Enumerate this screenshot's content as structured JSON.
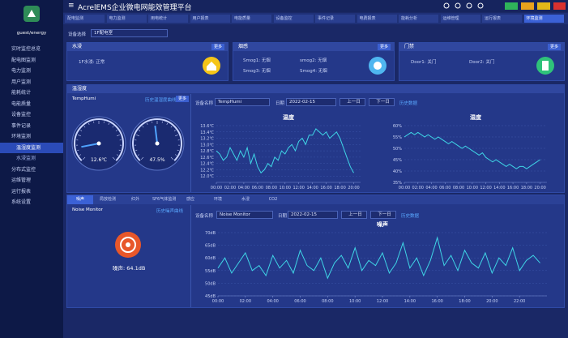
{
  "header": {
    "title": "AcrelEMS企业微电网能效管理平台"
  },
  "sidebar": {
    "user": "guest/energy",
    "menu": [
      "实时监控总览",
      "配电图监测",
      "电力监测",
      "用户监测",
      "能耗统计",
      "电能质量",
      "设备监控",
      "事件记录",
      "环境监测",
      "温湿度监测",
      "水浸监测",
      "分布式监控",
      "运维管理",
      "运行报表",
      "系统设置"
    ]
  },
  "tabs": [
    "配电监测",
    "电力监测",
    "用电统计",
    "用户报表",
    "电能质量",
    "设备监控",
    "事件记录",
    "电费报表",
    "能耗分析",
    "运维管理",
    "运行报表",
    "环境监测"
  ],
  "filter": {
    "label": "设备选择",
    "value": "1F配电室"
  },
  "panels": {
    "water": {
      "title": "水浸",
      "more": "更多",
      "items": [
        "1F水浸: 正常"
      ]
    },
    "smoke": {
      "title": "烟感",
      "more": "更多",
      "items": [
        "Smog1: 无烟",
        "smog2: 无烟",
        "Smog3: 无烟",
        "Smog4: 无烟"
      ]
    },
    "door": {
      "title": "门禁",
      "more": "更多",
      "items": [
        "Door1: 关门",
        "Door2: 关门"
      ]
    },
    "temp": {
      "title": "温湿度",
      "device": "TempHumi",
      "history_link": "历史温湿度曲线",
      "more": "更多",
      "name_label": "设备名称",
      "name_value": "TempHumi",
      "date_label": "日期",
      "date": "2022-02-15",
      "prev": "上一日",
      "next": "下一日",
      "history": "历史数据"
    },
    "noise": {
      "tabs": [
        "噪声",
        "局放检测",
        "红外",
        "SF6气体监测",
        "感应",
        "环境",
        "水浸",
        "CO2"
      ],
      "device": "Noise Monitor",
      "history_link": "历史噪声曲线",
      "name_label": "设备名称",
      "name_value": "Noise Monitor",
      "date_label": "日期",
      "date": "2022-02-15",
      "prev": "上一日",
      "next": "下一日",
      "history": "历史数据",
      "reading": "噪声: 64.1dB"
    }
  },
  "chart_data": [
    {
      "type": "gauge",
      "value": 12.6,
      "value_label": "12.6℃",
      "ylim": [
        0,
        100
      ],
      "color": "#4fa3ff"
    },
    {
      "type": "gauge",
      "value": 47.5,
      "value_label": "47.5%",
      "ylim": [
        0,
        100
      ],
      "color": "#4fa3ff"
    },
    {
      "type": "line",
      "title": "温度",
      "color": "#3fd5e6",
      "x": [
        0,
        0.5,
        1,
        1.5,
        2,
        2.5,
        3,
        3.5,
        4,
        4.5,
        5,
        5.5,
        6,
        6.5,
        7,
        7.5,
        8,
        8.5,
        9,
        9.5,
        10,
        10.5,
        11,
        11.5,
        12,
        12.5,
        13,
        13.5,
        14,
        14.5,
        15,
        15.5,
        16,
        16.5,
        17,
        17.5,
        18,
        18.5,
        19,
        19.5,
        20
      ],
      "values": [
        12.8,
        12.7,
        12.5,
        12.6,
        12.9,
        12.7,
        12.5,
        12.8,
        12.6,
        12.9,
        12.4,
        12.7,
        12.3,
        12.1,
        12.2,
        12.4,
        12.3,
        12.6,
        12.5,
        12.8,
        12.7,
        12.9,
        13.0,
        12.8,
        13.1,
        13.2,
        13.0,
        13.3,
        13.3,
        13.5,
        13.4,
        13.3,
        13.4,
        13.2,
        13.3,
        13.4,
        13.2,
        12.9,
        12.6,
        12.3,
        12.1
      ],
      "ylim": [
        11.8,
        13.6
      ],
      "yticks": [
        {
          "value": 12.0,
          "label": "12.0℃"
        },
        {
          "value": 12.2,
          "label": "12.2℃"
        },
        {
          "value": 12.4,
          "label": "12.4℃"
        },
        {
          "value": 12.6,
          "label": "12.6℃"
        },
        {
          "value": 12.8,
          "label": "12.8℃"
        },
        {
          "value": 13.0,
          "label": "13.0℃"
        },
        {
          "value": 13.2,
          "label": "13.2℃"
        },
        {
          "value": 13.4,
          "label": "13.4℃"
        },
        {
          "value": 13.6,
          "label": "13.6℃"
        }
      ],
      "xlim": [
        0,
        21
      ],
      "xticks": [
        {
          "value": 0,
          "label": "00:00"
        },
        {
          "value": 2,
          "label": "02:00"
        },
        {
          "value": 4,
          "label": "04:00"
        },
        {
          "value": 6,
          "label": "06:00"
        },
        {
          "value": 8,
          "label": "08:00"
        },
        {
          "value": 10,
          "label": "10:00"
        },
        {
          "value": 12,
          "label": "12:00"
        },
        {
          "value": 14,
          "label": "14:00"
        },
        {
          "value": 16,
          "label": "16:00"
        },
        {
          "value": 18,
          "label": "18:00"
        },
        {
          "value": 20,
          "label": "20:00"
        }
      ]
    },
    {
      "type": "line",
      "title": "湿度",
      "color": "#3fd5e6",
      "x": [
        0,
        0.5,
        1,
        1.5,
        2,
        2.5,
        3,
        3.5,
        4,
        4.5,
        5,
        5.5,
        6,
        6.5,
        7,
        7.5,
        8,
        8.5,
        9,
        9.5,
        10,
        10.5,
        11,
        11.5,
        12,
        12.5,
        13,
        13.5,
        14,
        14.5,
        15,
        15.5,
        16,
        16.5,
        17,
        17.5,
        18,
        18.5,
        19,
        19.5,
        20
      ],
      "values": [
        55,
        56,
        57,
        56,
        57,
        56,
        55,
        56,
        55,
        54,
        55,
        54,
        53,
        52,
        53,
        52,
        51,
        50,
        51,
        50,
        49,
        48,
        47,
        48,
        46,
        45,
        44,
        45,
        44,
        43,
        42,
        43,
        42,
        41,
        42,
        42,
        41,
        42,
        43,
        44,
        45
      ],
      "ylim": [
        35,
        60
      ],
      "yticks": [
        {
          "value": 35,
          "label": "35%"
        },
        {
          "value": 40,
          "label": "40%"
        },
        {
          "value": 45,
          "label": "45%"
        },
        {
          "value": 50,
          "label": "50%"
        },
        {
          "value": 55,
          "label": "55%"
        },
        {
          "value": 60,
          "label": "60%"
        }
      ],
      "xlim": [
        0,
        21
      ],
      "xticks": [
        {
          "value": 0,
          "label": "00:00"
        },
        {
          "value": 2,
          "label": "02:00"
        },
        {
          "value": 4,
          "label": "04:00"
        },
        {
          "value": 6,
          "label": "06:00"
        },
        {
          "value": 8,
          "label": "08:00"
        },
        {
          "value": 10,
          "label": "10:00"
        },
        {
          "value": 12,
          "label": "12:00"
        },
        {
          "value": 14,
          "label": "14:00"
        },
        {
          "value": 16,
          "label": "16:00"
        },
        {
          "value": 18,
          "label": "18:00"
        },
        {
          "value": 20,
          "label": "20:00"
        }
      ]
    },
    {
      "type": "line",
      "title": "噪声",
      "color": "#3fd5e6",
      "x": [
        0,
        0.5,
        1,
        1.5,
        2,
        2.5,
        3,
        3.5,
        4,
        4.5,
        5,
        5.5,
        6,
        6.5,
        7,
        7.5,
        8,
        8.5,
        9,
        9.5,
        10,
        10.5,
        11,
        11.5,
        12,
        12.5,
        13,
        13.5,
        14,
        14.5,
        15,
        15.5,
        16,
        16.5,
        17,
        17.5,
        18,
        18.5,
        19,
        19.5,
        20,
        20.5,
        21,
        21.5,
        22,
        22.5,
        23,
        23.5
      ],
      "values": [
        56,
        60,
        54,
        58,
        62,
        55,
        57,
        53,
        61,
        56,
        59,
        54,
        63,
        57,
        55,
        60,
        52,
        58,
        61,
        56,
        64,
        55,
        59,
        57,
        62,
        54,
        58,
        66,
        56,
        60,
        53,
        59,
        68,
        57,
        61,
        55,
        63,
        58,
        56,
        62,
        54,
        60,
        57,
        64,
        55,
        59,
        61,
        58
      ],
      "ylim": [
        45,
        70
      ],
      "yticks": [
        {
          "value": 45,
          "label": "45dB"
        },
        {
          "value": 50,
          "label": "50dB"
        },
        {
          "value": 55,
          "label": "55dB"
        },
        {
          "value": 60,
          "label": "60dB"
        },
        {
          "value": 65,
          "label": "65dB"
        },
        {
          "value": 70,
          "label": "70dB"
        }
      ],
      "xlim": [
        0,
        24
      ],
      "xticks": [
        {
          "value": 0,
          "label": "00:00"
        },
        {
          "value": 2,
          "label": "02:00"
        },
        {
          "value": 4,
          "label": "04:00"
        },
        {
          "value": 6,
          "label": "06:00"
        },
        {
          "value": 8,
          "label": "08:00"
        },
        {
          "value": 10,
          "label": "10:00"
        },
        {
          "value": 12,
          "label": "12:00"
        },
        {
          "value": 14,
          "label": "14:00"
        },
        {
          "value": 16,
          "label": "16:00"
        },
        {
          "value": 18,
          "label": "18:00"
        },
        {
          "value": 20,
          "label": "20:00"
        },
        {
          "value": 22,
          "label": "22:00"
        }
      ]
    }
  ]
}
